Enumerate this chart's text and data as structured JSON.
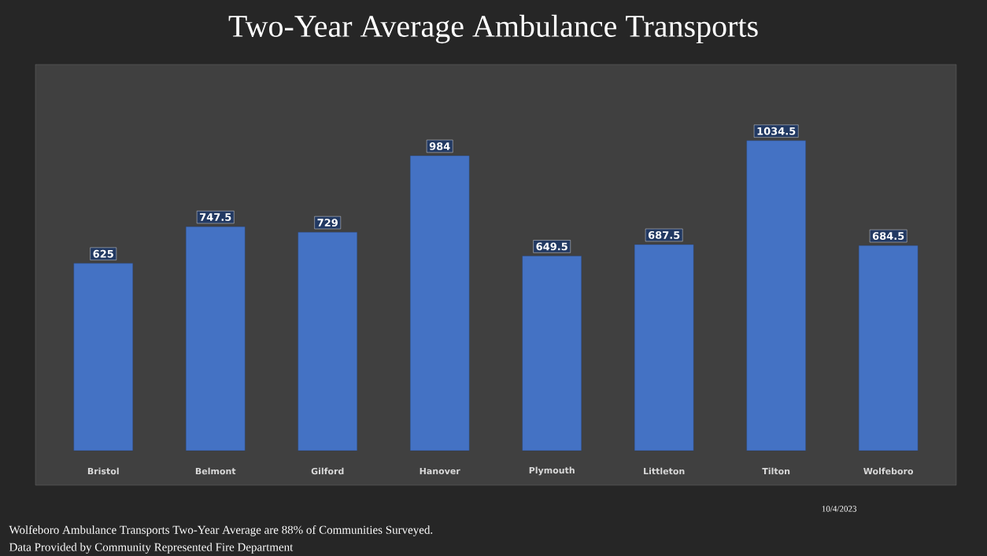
{
  "chart_data": {
    "type": "bar",
    "title": "Two-Year Average Ambulance Transports",
    "categories": [
      "Bristol",
      "Belmont",
      "Gilford",
      "Hanover",
      "Plymouth",
      "Littleton",
      "Tilton",
      "Wolfeboro"
    ],
    "values": [
      625,
      747.5,
      729,
      984,
      649.5,
      687.5,
      1034.5,
      684.5
    ],
    "color": "#4472c4",
    "data_labels": true,
    "annotations": [
      "10/4/2023",
      "Wolfeboro Ambulance Transports Two-Year Average are 88% of Communities Surveyed.",
      "Data Provided by Community Represented Fire Department"
    ]
  }
}
